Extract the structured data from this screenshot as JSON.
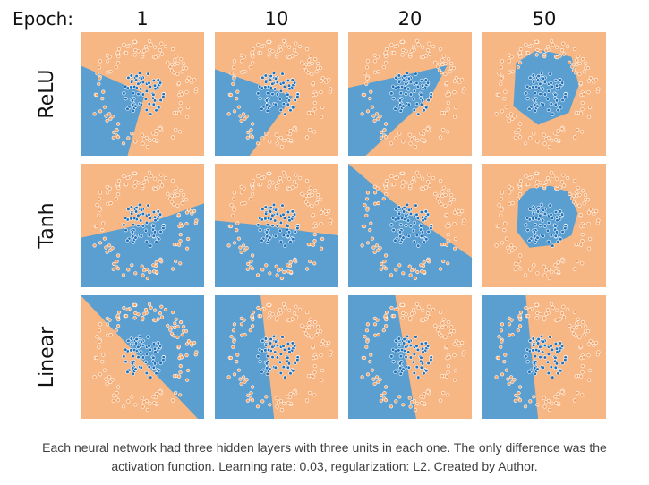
{
  "header": {
    "epoch_label": "Epoch:"
  },
  "columns": [
    "1",
    "10",
    "20",
    "50"
  ],
  "rows": [
    "ReLU",
    "Tanh",
    "Linear"
  ],
  "caption": {
    "line1": "Each neural network had three hidden layers with three units in each one. The only difference was the",
    "line2": "activation function. Learning rate: 0.03, regularization: L2. Created by Author."
  },
  "colors": {
    "orange_region": "#f7b785",
    "blue_region": "#5b9fd0",
    "orange_point": "#f2a468",
    "blue_point": "#1f72bb"
  },
  "chart_data": {
    "type": "scatter",
    "description_of_grid": "rows = activation function, columns = training epoch",
    "rows": [
      "ReLU",
      "Tanh",
      "Linear"
    ],
    "columns": [
      "1",
      "10",
      "20",
      "50"
    ],
    "dataset": "circle: inner blue cluster surrounded by an orange ring",
    "decision_regions": [
      {
        "row": "ReLU",
        "epoch": "1",
        "blue_region": [
          [
            0,
            0.27
          ],
          [
            0.52,
            0.5
          ],
          [
            0.38,
            1
          ],
          [
            0,
            1
          ]
        ]
      },
      {
        "row": "ReLU",
        "epoch": "10",
        "blue_region": [
          [
            0,
            0.3
          ],
          [
            0.63,
            0.52
          ],
          [
            0.28,
            1
          ],
          [
            0,
            1
          ]
        ]
      },
      {
        "row": "ReLU",
        "epoch": "20",
        "blue_region": [
          [
            0,
            0.45
          ],
          [
            0.8,
            0.27
          ],
          [
            0.68,
            0.5
          ],
          [
            0.14,
            1
          ],
          [
            0,
            1
          ]
        ]
      },
      {
        "row": "ReLU",
        "epoch": "50",
        "blue_region": [
          [
            0.27,
            0.25
          ],
          [
            0.45,
            0.14
          ],
          [
            0.72,
            0.2
          ],
          [
            0.78,
            0.43
          ],
          [
            0.7,
            0.65
          ],
          [
            0.45,
            0.75
          ],
          [
            0.25,
            0.6
          ]
        ]
      },
      {
        "row": "Tanh",
        "epoch": "1",
        "blue_region": [
          [
            0,
            0.6
          ],
          [
            0.55,
            0.48
          ],
          [
            1,
            0.32
          ],
          [
            1,
            1
          ],
          [
            0,
            1
          ]
        ]
      },
      {
        "row": "Tanh",
        "epoch": "10",
        "blue_region": [
          [
            0,
            0.46
          ],
          [
            0.4,
            0.5
          ],
          [
            0.75,
            0.55
          ],
          [
            1,
            0.58
          ],
          [
            1,
            1
          ],
          [
            0,
            1
          ]
        ]
      },
      {
        "row": "Tanh",
        "epoch": "20",
        "blue_region": [
          [
            0,
            0
          ],
          [
            0.35,
            0.3
          ],
          [
            0.7,
            0.55
          ],
          [
            1,
            0.76
          ],
          [
            1,
            1
          ],
          [
            0,
            1
          ]
        ]
      },
      {
        "row": "Tanh",
        "epoch": "50",
        "blue_region": [
          [
            0.29,
            0.3
          ],
          [
            0.38,
            0.2
          ],
          [
            0.55,
            0.18
          ],
          [
            0.7,
            0.23
          ],
          [
            0.77,
            0.4
          ],
          [
            0.72,
            0.58
          ],
          [
            0.55,
            0.66
          ],
          [
            0.38,
            0.68
          ],
          [
            0.28,
            0.55
          ]
        ]
      },
      {
        "row": "Linear",
        "epoch": "1",
        "blue_region": [
          [
            0,
            0
          ],
          [
            1,
            0
          ],
          [
            1,
            1
          ],
          [
            0.95,
            1
          ]
        ]
      },
      {
        "row": "Linear",
        "epoch": "10",
        "blue_region": [
          [
            0,
            0
          ],
          [
            0.37,
            0
          ],
          [
            0.48,
            1
          ],
          [
            0,
            1
          ]
        ]
      },
      {
        "row": "Linear",
        "epoch": "20",
        "blue_region": [
          [
            0,
            0
          ],
          [
            0.38,
            0
          ],
          [
            0.55,
            1
          ],
          [
            0,
            1
          ]
        ]
      },
      {
        "row": "Linear",
        "epoch": "50",
        "blue_region": [
          [
            0,
            0
          ],
          [
            0.35,
            0
          ],
          [
            0.45,
            1
          ],
          [
            0,
            1
          ]
        ]
      }
    ],
    "points": {
      "inner_class": {
        "color": "blue",
        "center": [
          0.5,
          0.5
        ],
        "radius_range": [
          0,
          0.18
        ],
        "count": 70
      },
      "outer_class": {
        "color": "orange",
        "center": [
          0.5,
          0.5
        ],
        "radius_range": [
          0.3,
          0.44
        ],
        "count": 120
      }
    },
    "grid": false,
    "legend": "none"
  }
}
